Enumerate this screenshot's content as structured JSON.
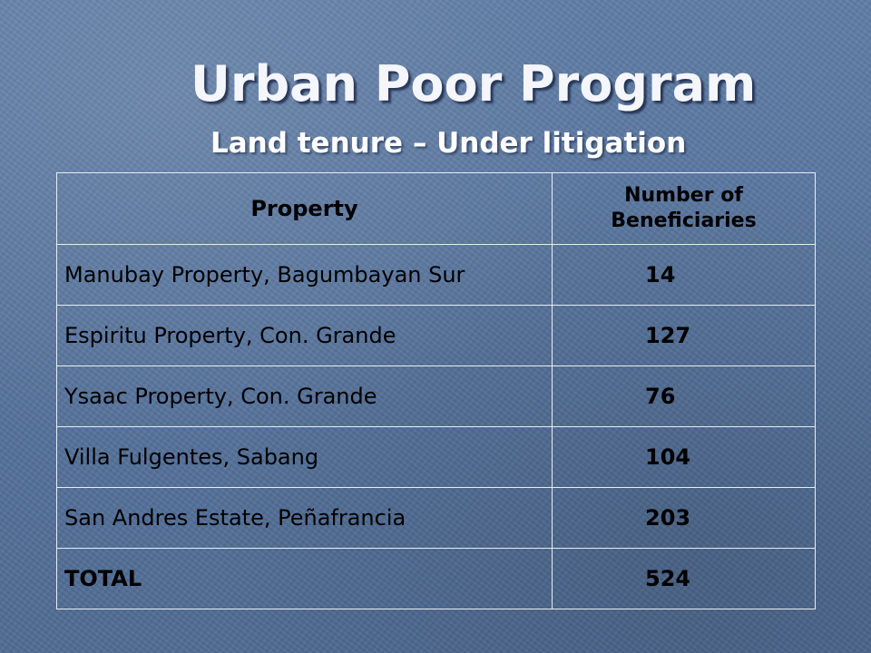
{
  "slide": {
    "title": "Urban Poor Program",
    "subtitle": "Land tenure – Under litigation"
  },
  "table": {
    "headers": {
      "property": "Property",
      "beneficiaries": "Number of Beneficiaries"
    },
    "rows": [
      {
        "property": "Manubay Property, Bagumbayan Sur",
        "beneficiaries": "14"
      },
      {
        "property": "Espiritu Property, Con. Grande",
        "beneficiaries": "127"
      },
      {
        "property": "Ysaac Property, Con. Grande",
        "beneficiaries": "76"
      },
      {
        "property": "Villa Fulgentes, Sabang",
        "beneficiaries": "104"
      },
      {
        "property": "San Andres Estate, Peñafrancia",
        "beneficiaries": "203"
      }
    ],
    "total": {
      "label": "TOTAL",
      "value": "524"
    }
  },
  "colors": {
    "background": "#5a77a0",
    "text": "#000000",
    "title": "#f4f6fb",
    "grid": "#e7ecf4"
  }
}
